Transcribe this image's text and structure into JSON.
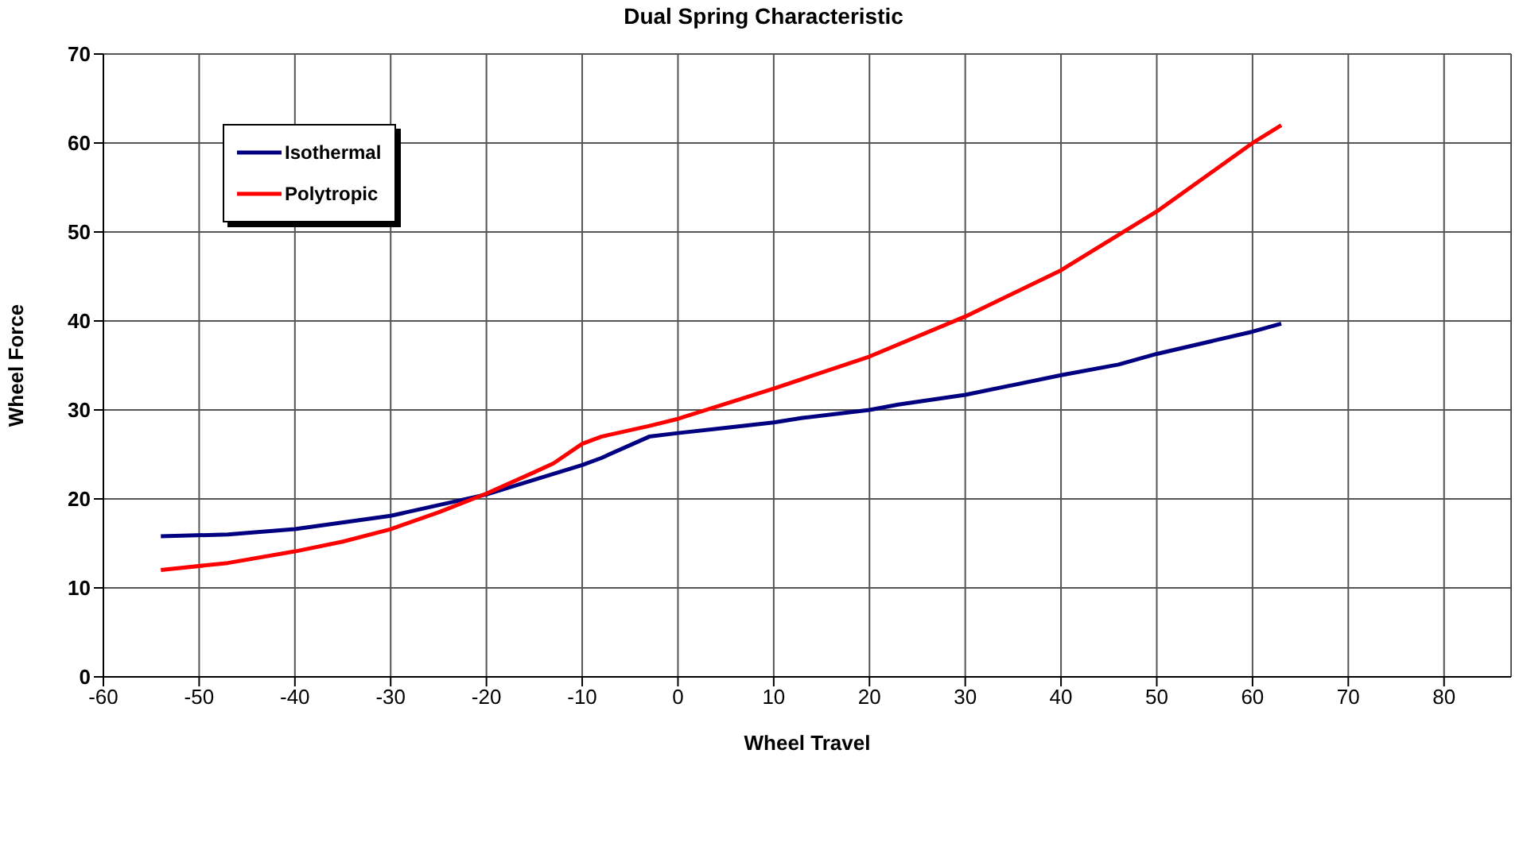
{
  "chart_data": {
    "type": "line",
    "title": "Dual Spring Characteristic",
    "xlabel": "Wheel Travel",
    "ylabel": "Wheel Force",
    "xlim": [
      -60,
      87
    ],
    "xticks": [
      -60,
      -50,
      -40,
      -30,
      -20,
      -10,
      0,
      10,
      20,
      30,
      40,
      50,
      60,
      70,
      80
    ],
    "ylim": [
      0,
      70
    ],
    "yticks": [
      0,
      10,
      20,
      30,
      40,
      50,
      60,
      70
    ],
    "grid": true,
    "legend": "top left",
    "marker": "none",
    "line_style": "solid",
    "series": [
      {
        "name": "Isothermal",
        "color": "#000080",
        "x": [
          -54,
          -47,
          -40,
          -30,
          -20,
          -10,
          -8,
          -3,
          0,
          5,
          10,
          13,
          20,
          23,
          30,
          40,
          46,
          50,
          60,
          63
        ],
        "values": [
          15.8,
          16.0,
          16.6,
          18.1,
          20.5,
          23.8,
          24.6,
          27.0,
          27.4,
          28.0,
          28.6,
          29.1,
          30.0,
          30.6,
          31.7,
          33.9,
          35.1,
          36.3,
          38.8,
          39.7
        ]
      },
      {
        "name": "Polytropic",
        "color": "#ff0000",
        "x": [
          -54,
          -47,
          -40,
          -35,
          -30,
          -25,
          -20,
          -15,
          -13,
          -10,
          -8,
          -3,
          0,
          5,
          10,
          20,
          30,
          40,
          45,
          50,
          60,
          63
        ],
        "values": [
          12.0,
          12.8,
          14.1,
          15.2,
          16.6,
          18.5,
          20.6,
          23.0,
          24.0,
          26.2,
          27.0,
          28.2,
          29.0,
          30.7,
          32.4,
          36.0,
          40.5,
          45.7,
          49.0,
          52.3,
          60.0,
          62.0
        ]
      }
    ]
  }
}
